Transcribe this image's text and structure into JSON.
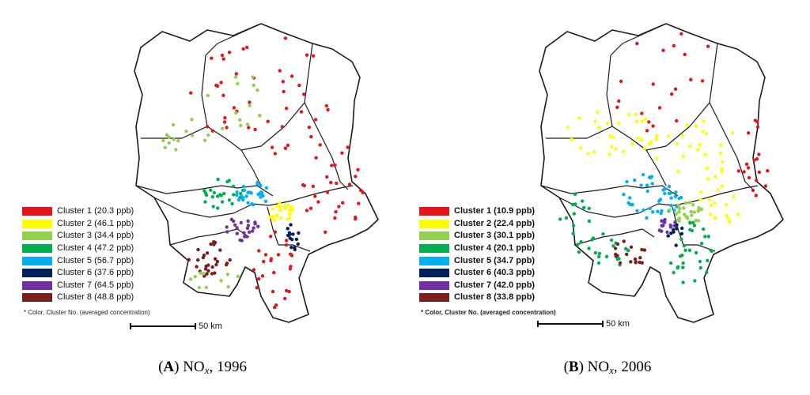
{
  "panels": [
    {
      "id": "A",
      "caption": {
        "open": "(",
        "letter": "A",
        "close": ")",
        "pollutant": "NO",
        "subscript": "x",
        "year": ", 1996"
      },
      "legend": [
        {
          "label": "Cluster 1 (20.3 ppb)",
          "color": "#e8141b"
        },
        {
          "label": "Cluster 2 (46.1 ppb)",
          "color": "#ffff00"
        },
        {
          "label": "Cluster 3 (34.4 ppb)",
          "color": "#92d050"
        },
        {
          "label": "Cluster 4 (47.2 ppb)",
          "color": "#00b050"
        },
        {
          "label": "Cluster 5 (56.7 ppb)",
          "color": "#00b0f0"
        },
        {
          "label": "Cluster 6 (37.6 ppb)",
          "color": "#002060"
        },
        {
          "label": "Cluster 7 (64.5 ppb)",
          "color": "#7030a0"
        },
        {
          "label": "Cluster 8 (48.8 ppb)",
          "color": "#7b1e1e"
        }
      ],
      "legend_note": "* Color,  Cluster No. (averaged concentration)",
      "scale_label": "50 km"
    },
    {
      "id": "B",
      "caption": {
        "open": "(",
        "letter": "B",
        "close": ")",
        "pollutant": "NO",
        "subscript": "x",
        "year": ", 2006"
      },
      "legend": [
        {
          "label": "Cluster 1 (10.9 ppb)",
          "color": "#e8141b"
        },
        {
          "label": "Cluster 2 (22.4 ppb)",
          "color": "#ffff00"
        },
        {
          "label": "Cluster 3 (30.1 ppb)",
          "color": "#92d050"
        },
        {
          "label": "Cluster 4 (20.1 ppb)",
          "color": "#00b050"
        },
        {
          "label": "Cluster 5 (34.7 ppb)",
          "color": "#00b0f0"
        },
        {
          "label": "Cluster 6 (40.3 ppb)",
          "color": "#002060"
        },
        {
          "label": "Cluster 7 (42.0 ppb)",
          "color": "#7030a0"
        },
        {
          "label": "Cluster 8 (33.8 ppb)",
          "color": "#7b1e1e"
        }
      ],
      "legend_note": "* Color,  Cluster No. (averaged concentration)",
      "scale_label": "50 km"
    }
  ]
}
